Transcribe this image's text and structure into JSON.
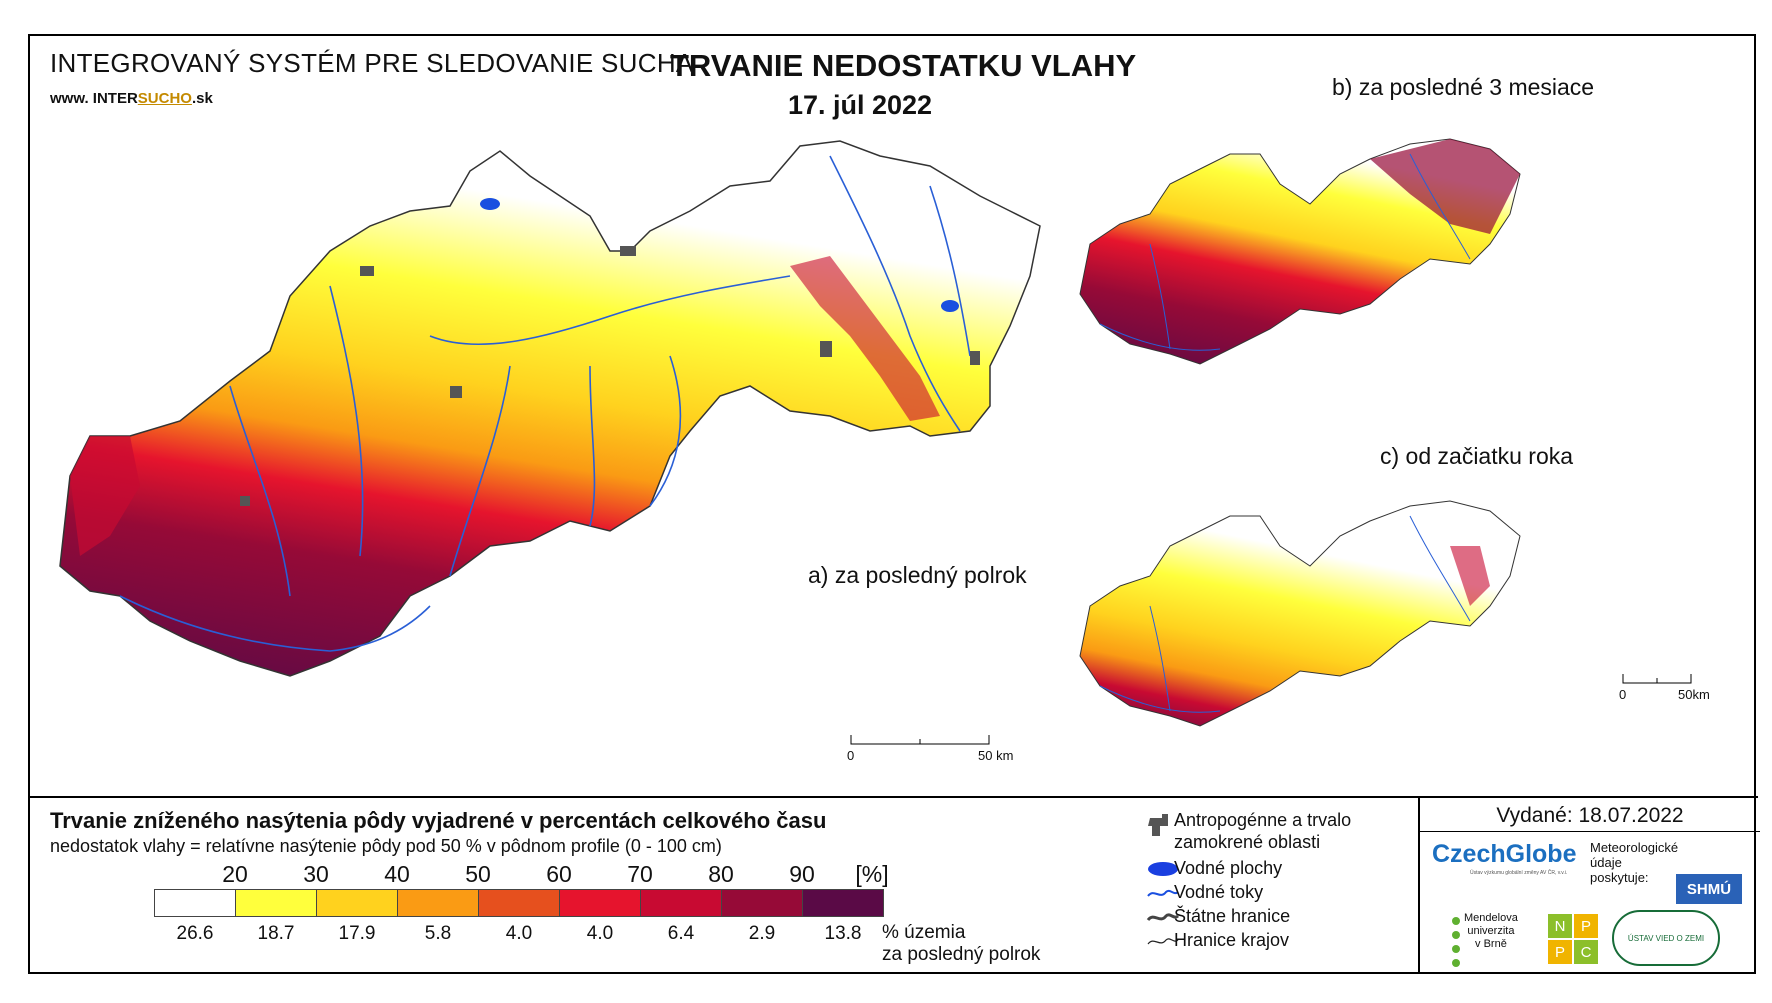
{
  "header": {
    "system_name": "INTEGROVANÝ SYSTÉM PRE SLEDOVANIE SUCHA",
    "website_prefix": "www. INTER",
    "website_highlight": "SUCHO",
    "website_suffix": ".sk",
    "title": "TRVANIE NEDOSTATKU VLAHY",
    "date": "17. júl 2022"
  },
  "panels": {
    "a_label": "a) za posledný polrok",
    "b_label": "b) za posledné 3 mesiace",
    "c_label": "c) od začiatku roka"
  },
  "scalebars": {
    "main": {
      "zero": "0",
      "end": "50 km"
    },
    "small": {
      "zero": "0",
      "end": "50km"
    }
  },
  "legend": {
    "title": "Trvanie zníženého nasýtenia pôdy vyjadrené v percentách celkového času",
    "subtitle": "nedostatok vlahy = relatívne nasýtenie pôdy pod 50 % v pôdnom profile (0 - 100 cm)",
    "ticks": [
      "20",
      "30",
      "40",
      "50",
      "60",
      "70",
      "80",
      "90"
    ],
    "unit": "[%]",
    "bins": [
      {
        "color": "#ffffff",
        "percent": "26.6"
      },
      {
        "color": "#ffff3c",
        "percent": "18.7"
      },
      {
        "color": "#ffd21e",
        "percent": "17.9"
      },
      {
        "color": "#fa9b14",
        "percent": "5.8"
      },
      {
        "color": "#e6501e",
        "percent": "4.0"
      },
      {
        "color": "#e6142d",
        "percent": "4.0"
      },
      {
        "color": "#c80a32",
        "percent": "6.4"
      },
      {
        "color": "#960a37",
        "percent": "2.9"
      },
      {
        "color": "#5a0a46",
        "percent": "13.8"
      }
    ],
    "percent_label": "% územia\nza posledný polrok",
    "items": [
      {
        "label": "Antropogénne a trvalo",
        "label2": "zamokrené oblasti",
        "icon": "anthropogenic-area-icon"
      },
      {
        "label": "Vodné plochy",
        "icon": "water-body-icon"
      },
      {
        "label": "Vodné toky",
        "icon": "river-icon"
      },
      {
        "label": "Štátne hranice",
        "icon": "state-border-icon"
      },
      {
        "label": "Hranice krajov",
        "icon": "region-border-icon"
      }
    ]
  },
  "credits": {
    "issued": "Vydané: 18.07.2022",
    "czechglobe": "CzechGlobe",
    "czechglobe_sub": "Ústav výzkumu globální změny AV ČR, v.v.i.",
    "meteo": "Meteorologické\núdaje\nposkytuje:",
    "shmu": "SHMÚ",
    "mendel": "Mendelova\nuniverzita\nv Brně",
    "npc": [
      "N",
      "P",
      "P",
      "C"
    ],
    "uvz": "ÚSTAV VIED O ZEMI"
  }
}
